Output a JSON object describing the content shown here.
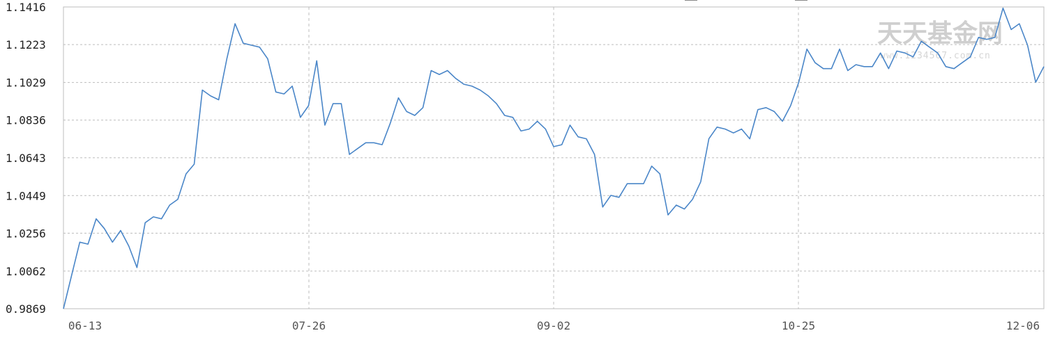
{
  "chart_data": {
    "type": "line",
    "title": "",
    "xlabel": "",
    "ylabel": "",
    "y_ticks": [
      "1.1416",
      "1.1223",
      "1.1029",
      "1.0836",
      "1.0643",
      "1.0449",
      "1.0256",
      "1.0062",
      "0.9869"
    ],
    "ylim": [
      0.9869,
      1.1416
    ],
    "x_tick_labels": [
      "06-13",
      "07-26",
      "09-02",
      "10-25",
      "12-06"
    ],
    "grid": true,
    "color": "#4a86c8",
    "series": [
      {
        "values": [
          0.9869,
          1.004,
          1.021,
          1.02,
          1.033,
          1.028,
          1.021,
          1.027,
          1.019,
          1.008,
          1.031,
          1.034,
          1.033,
          1.04,
          1.043,
          1.056,
          1.061,
          1.099,
          1.096,
          1.094,
          1.115,
          1.133,
          1.123,
          1.122,
          1.121,
          1.115,
          1.098,
          1.097,
          1.101,
          1.085,
          1.091,
          1.114,
          1.081,
          1.092,
          1.092,
          1.066,
          1.069,
          1.072,
          1.072,
          1.071,
          1.082,
          1.095,
          1.088,
          1.086,
          1.09,
          1.109,
          1.107,
          1.109,
          1.105,
          1.102,
          1.101,
          1.099,
          1.096,
          1.092,
          1.086,
          1.085,
          1.078,
          1.079,
          1.083,
          1.079,
          1.07,
          1.071,
          1.081,
          1.075,
          1.074,
          1.066,
          1.039,
          1.045,
          1.044,
          1.051,
          1.051,
          1.051,
          1.06,
          1.056,
          1.035,
          1.04,
          1.038,
          1.043,
          1.052,
          1.074,
          1.08,
          1.079,
          1.077,
          1.079,
          1.074,
          1.089,
          1.09,
          1.088,
          1.083,
          1.091,
          1.103,
          1.12,
          1.113,
          1.11,
          1.11,
          1.12,
          1.109,
          1.112,
          1.111,
          1.111,
          1.118,
          1.11,
          1.119,
          1.118,
          1.116,
          1.124,
          1.121,
          1.118,
          1.111,
          1.11,
          1.113,
          1.116,
          1.126,
          1.125,
          1.126,
          1.141,
          1.13,
          1.133,
          1.122,
          1.103,
          1.111
        ]
      }
    ],
    "watermark": {
      "text": "天天基金网",
      "url": "www.1234567.com.cn"
    }
  }
}
